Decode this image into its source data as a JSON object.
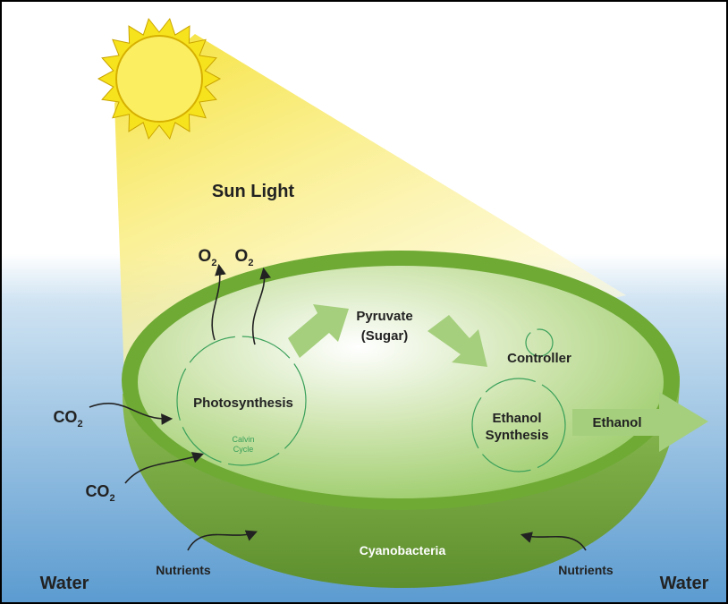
{
  "labels": {
    "sun_light": "Sun Light",
    "oxygen": [
      {
        "text": "O",
        "subscript": "2"
      },
      {
        "text": "O",
        "subscript": "2"
      }
    ],
    "pyruvate": [
      "Pyruvate",
      "(Sugar)"
    ],
    "controller": "Controller",
    "photosynthesis": "Photosynthesis",
    "calvin_cycle": [
      "Calvin",
      "Cycle"
    ],
    "ethanol_synthesis": [
      "Ethanol",
      "Synthesis"
    ],
    "ethanol_output": "Ethanol",
    "carbon_dioxide": [
      {
        "text": "CO",
        "subscript": "2"
      },
      {
        "text": "CO",
        "subscript": "2"
      }
    ],
    "water": [
      "Water",
      "Water"
    ],
    "nutrients": [
      "Nutrients",
      "Nutrients"
    ],
    "cyanobacteria": "Cyanobacteria"
  }
}
